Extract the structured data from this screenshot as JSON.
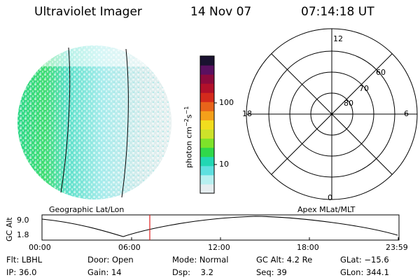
{
  "header": {
    "instrument": "Ultraviolet Imager",
    "date": "14 Nov 07",
    "time": "07:14:18 UT"
  },
  "colorbar": {
    "label_main": "photon cm",
    "label_sup1": "−2",
    "label_mid": "s",
    "label_sup2": "−1",
    "ticks": [
      "100",
      "10"
    ],
    "scale": "log",
    "colors": [
      "#e6eef0",
      "#b7f0f0",
      "#5fe0e0",
      "#22d7b4",
      "#30d84a",
      "#7ee32a",
      "#cde22a",
      "#f2dd1e",
      "#f4a01a",
      "#e8641a",
      "#d42a1c",
      "#b2102a",
      "#8c0a3c",
      "#5a1060",
      "#1a1230"
    ]
  },
  "geo_panel": {
    "caption": "Geographic Lat/Lon"
  },
  "polar_panel": {
    "caption": "Apex MLat/MLT",
    "mlt_labels": [
      "12",
      "6",
      "0",
      "18"
    ],
    "mlat_labels": [
      "60",
      "70",
      "80"
    ]
  },
  "altitude_plot": {
    "ylabel": "GC Alt",
    "yticks": [
      "9.0",
      "1.8"
    ],
    "xticks": [
      "00:00",
      "06:00",
      "12:00",
      "18:00",
      "23:59"
    ],
    "accent_color": "#e02020"
  },
  "info": {
    "flt_label": "Flt:",
    "flt_value": "LBHL",
    "ip_label": "IP:",
    "ip_value": "36.0",
    "door_label": "Door:",
    "door_value": "Open",
    "gain_label": "Gain:",
    "gain_value": "14",
    "mode_label": "Mode:",
    "mode_value": "Normal",
    "dsp_label": "Dsp:",
    "dsp_value": "3.2",
    "gcalt_label": "GC Alt:",
    "gcalt_value": "4.2 Re",
    "seq_label": "Seq:",
    "seq_value": "39",
    "glat_label": "GLat:",
    "glat_value": "−15.6",
    "glon_label": "GLon:",
    "glon_value": "344.1"
  }
}
